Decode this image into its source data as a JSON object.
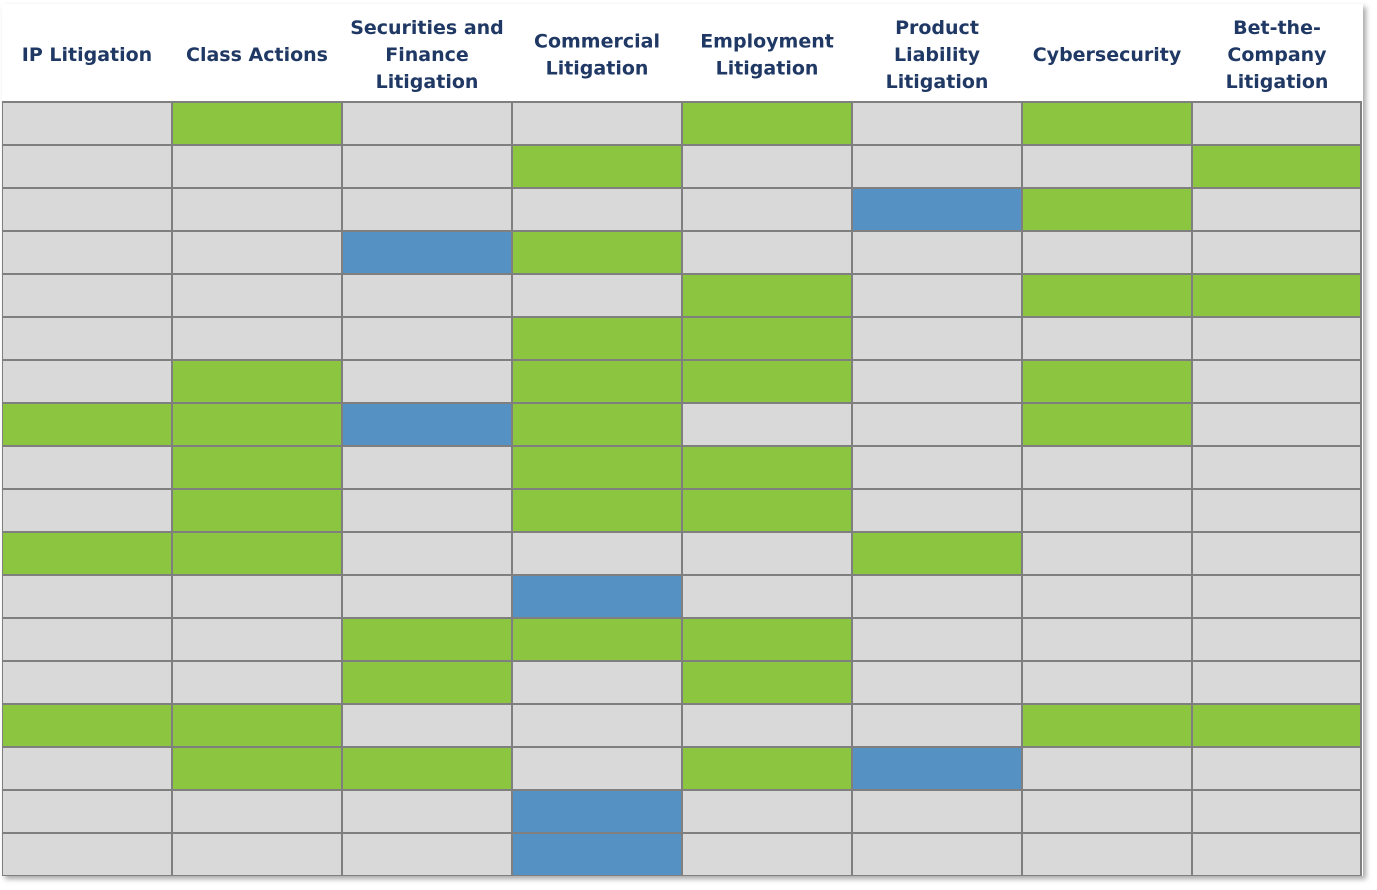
{
  "chart_data": {
    "type": "heatmap",
    "title": "",
    "columns": [
      [
        "IP Litigation"
      ],
      [
        "Class Actions"
      ],
      [
        "Securities and",
        "Finance",
        "Litigation"
      ],
      [
        "Commercial",
        "Litigation"
      ],
      [
        "Employment",
        "Litigation"
      ],
      [
        "Product",
        "Liability",
        "Litigation"
      ],
      [
        "Cybersecurity"
      ],
      [
        "Bet-the-",
        "Company",
        "Litigation"
      ]
    ],
    "legend": {
      "0": "none",
      "1": "green",
      "2": "blue"
    },
    "colors": {
      "0": "#d9d9d9",
      "1": "#8cc540",
      "2": "#5592c3",
      "header_text": "#1f3864",
      "grid_line": "#7f7f7f"
    },
    "rows": [
      [
        0,
        1,
        0,
        0,
        1,
        0,
        1,
        0
      ],
      [
        0,
        0,
        0,
        1,
        0,
        0,
        0,
        1
      ],
      [
        0,
        0,
        0,
        0,
        0,
        2,
        1,
        0
      ],
      [
        0,
        0,
        2,
        1,
        0,
        0,
        0,
        0
      ],
      [
        0,
        0,
        0,
        0,
        1,
        0,
        1,
        1
      ],
      [
        0,
        0,
        0,
        1,
        1,
        0,
        0,
        0
      ],
      [
        0,
        1,
        0,
        1,
        1,
        0,
        1,
        0
      ],
      [
        1,
        1,
        2,
        1,
        0,
        0,
        1,
        0
      ],
      [
        0,
        1,
        0,
        1,
        1,
        0,
        0,
        0
      ],
      [
        0,
        1,
        0,
        1,
        1,
        0,
        0,
        0
      ],
      [
        1,
        1,
        0,
        0,
        0,
        1,
        0,
        0
      ],
      [
        0,
        0,
        0,
        2,
        0,
        0,
        0,
        0
      ],
      [
        0,
        0,
        1,
        1,
        1,
        0,
        0,
        0
      ],
      [
        0,
        0,
        1,
        0,
        1,
        0,
        0,
        0
      ],
      [
        1,
        1,
        0,
        0,
        0,
        0,
        1,
        1
      ],
      [
        0,
        1,
        1,
        0,
        1,
        2,
        0,
        0
      ],
      [
        0,
        0,
        0,
        2,
        0,
        0,
        0,
        0
      ],
      [
        0,
        0,
        0,
        2,
        0,
        0,
        0,
        0
      ]
    ]
  }
}
